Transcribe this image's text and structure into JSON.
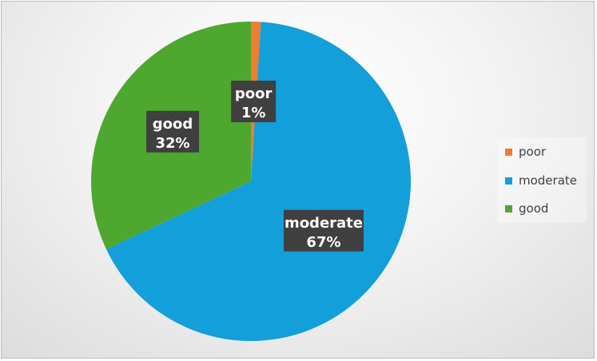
{
  "chart_data": {
    "type": "pie",
    "title": "",
    "categories": [
      "poor",
      "moderate",
      "good"
    ],
    "values": [
      1,
      67,
      32
    ],
    "labels": [
      "1%",
      "67%",
      "32%"
    ],
    "colors": [
      "#ED7D31",
      "#129FDA",
      "#4EA72E"
    ],
    "legend_position": "right",
    "data_label_style": "white bold text on dark patterned box"
  },
  "legend": {
    "items": [
      {
        "label": "poor",
        "color": "#ED7D31"
      },
      {
        "label": "moderate",
        "color": "#129FDA"
      },
      {
        "label": "good",
        "color": "#4EA72E"
      }
    ]
  }
}
